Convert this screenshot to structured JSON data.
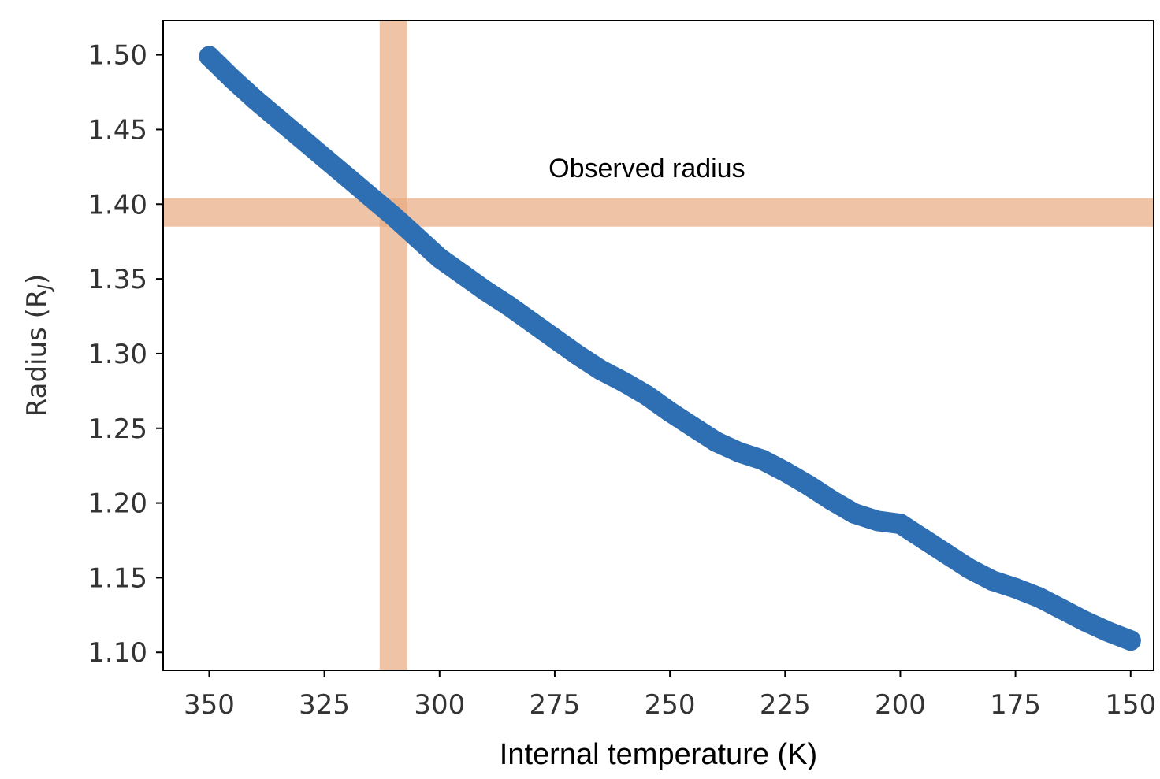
{
  "chart_data": {
    "type": "scatter",
    "title": "",
    "xlabel": "Internal temperature (K)",
    "ylabel_main": "Radius (R",
    "ylabel_sub": "J",
    "ylabel_close": ")",
    "xlim": [
      360,
      145
    ],
    "ylim": [
      1.088,
      1.523
    ],
    "x_inverted": true,
    "x_ticks": [
      350,
      325,
      300,
      275,
      250,
      225,
      200,
      175,
      150
    ],
    "x_tick_labels": [
      "350",
      "325",
      "300",
      "275",
      "250",
      "225",
      "200",
      "175",
      "150"
    ],
    "y_ticks": [
      1.1,
      1.15,
      1.2,
      1.25,
      1.3,
      1.35,
      1.4,
      1.45,
      1.5
    ],
    "y_tick_labels": [
      "1.10",
      "1.15",
      "1.20",
      "1.25",
      "1.30",
      "1.35",
      "1.40",
      "1.45",
      "1.50"
    ],
    "grid": false,
    "series": [
      {
        "color": "#2e6fb4",
        "x": [
          350,
          345,
          340,
          335,
          330,
          325,
          320,
          315,
          310,
          305,
          300,
          295,
          290,
          285,
          280,
          275,
          270,
          265,
          260,
          255,
          250,
          245,
          240,
          235,
          230,
          225,
          220,
          215,
          210,
          205,
          200,
          195,
          190,
          185,
          180,
          175,
          170,
          165,
          160,
          155,
          150
        ],
        "y": [
          1.499,
          1.484,
          1.47,
          1.457,
          1.444,
          1.431,
          1.418,
          1.405,
          1.392,
          1.378,
          1.364,
          1.353,
          1.342,
          1.332,
          1.321,
          1.31,
          1.299,
          1.289,
          1.281,
          1.272,
          1.261,
          1.251,
          1.241,
          1.234,
          1.229,
          1.221,
          1.212,
          1.202,
          1.193,
          1.188,
          1.186,
          1.176,
          1.166,
          1.156,
          1.148,
          1.143,
          1.137,
          1.129,
          1.121,
          1.114,
          1.108
        ]
      }
    ],
    "bands": {
      "color": "#e8a97f",
      "horizontal_range": [
        1.385,
        1.404
      ],
      "vertical_range": [
        307,
        313
      ]
    },
    "annotations": [
      {
        "text": "Observed radius",
        "x": 255,
        "y": 1.418
      }
    ]
  }
}
